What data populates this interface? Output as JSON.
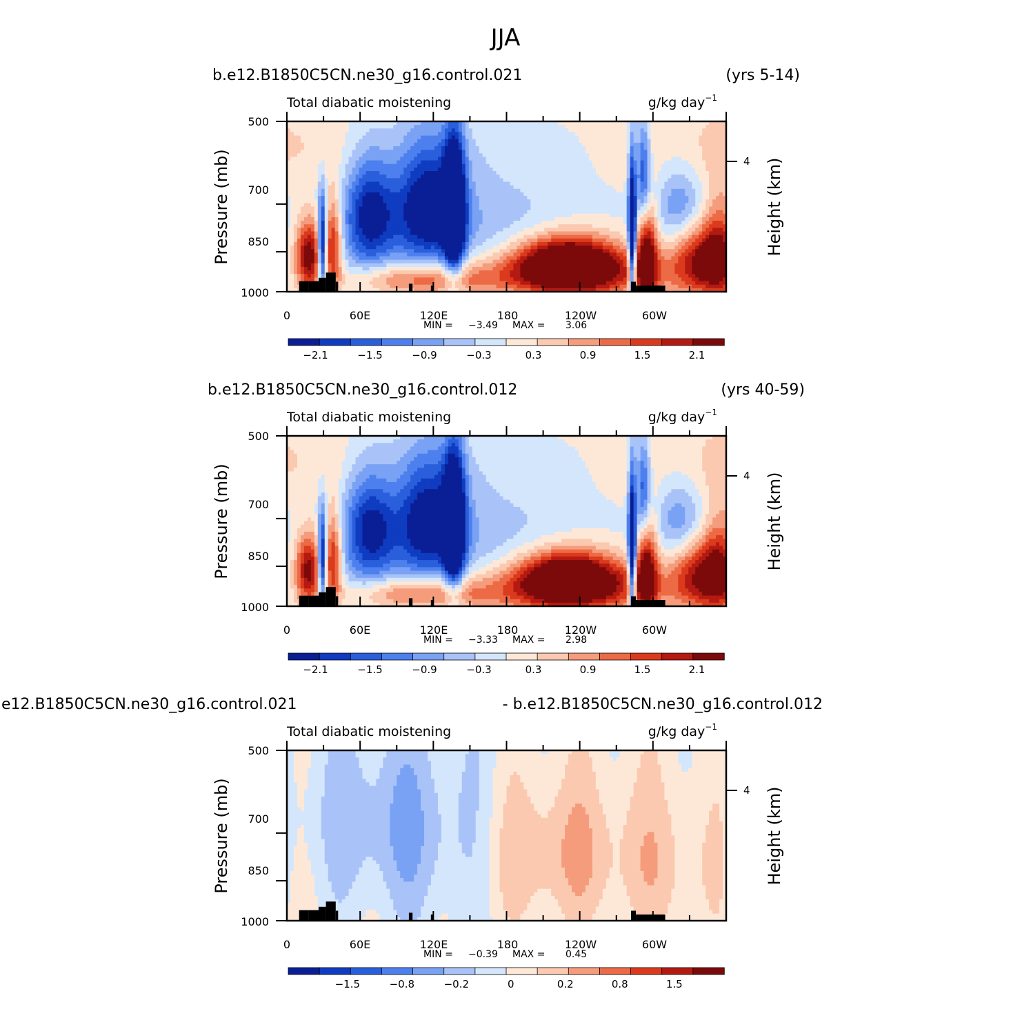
{
  "figure": {
    "title": "JJA"
  },
  "colors": {
    "palette": [
      "#0a1f96",
      "#0f3cc0",
      "#2a5fdc",
      "#4d80ee",
      "#7aa2f4",
      "#a9c3f8",
      "#d4e6fb",
      "#fde8d8",
      "#fbc9b0",
      "#f59c7c",
      "#ec6a45",
      "#dc3a1c",
      "#b41a12",
      "#7d0a0a"
    ],
    "mask": "#000000"
  },
  "chart_data": [
    {
      "type": "heatmap",
      "case_name": "b.e12.B1850C5CN.ne30_g16.control.021",
      "case_years": "(yrs 5-14)",
      "subtitle": "Total diabatic moistening",
      "units": "g/kg day",
      "units_exp": "−1",
      "ylabel": "Pressure (mb)",
      "ylabel_right": "Height (km)",
      "yticks": [
        "500",
        "700",
        "850",
        "1000"
      ],
      "yticks_right": [
        "4"
      ],
      "xticks": [
        "0",
        "60E",
        "120E",
        "180",
        "120W",
        "60W"
      ],
      "xlim_deg": [
        0,
        360
      ],
      "ylim_mb": [
        1000,
        500
      ],
      "min_label": "MIN =",
      "min_value": "−3.49",
      "max_label": "MAX =",
      "max_value": "3.06",
      "colorbar_labels": [
        "−2.1",
        "−1.5",
        "−0.9",
        "−0.3",
        "0.3",
        "0.9",
        "1.5",
        "2.1"
      ],
      "scale": 1.0
    },
    {
      "type": "heatmap",
      "case_name": "b.e12.B1850C5CN.ne30_g16.control.012",
      "case_years": "(yrs 40-59)",
      "subtitle": "Total diabatic moistening",
      "units": "g/kg day",
      "units_exp": "−1",
      "ylabel": "Pressure (mb)",
      "ylabel_right": "Height (km)",
      "yticks": [
        "500",
        "700",
        "850",
        "1000"
      ],
      "yticks_right": [
        "4"
      ],
      "xticks": [
        "0",
        "60E",
        "120E",
        "180",
        "120W",
        "60W"
      ],
      "xlim_deg": [
        0,
        360
      ],
      "ylim_mb": [
        1000,
        500
      ],
      "min_label": "MIN =",
      "min_value": "−3.33",
      "max_label": "MAX =",
      "max_value": "2.98",
      "colorbar_labels": [
        "−2.1",
        "−1.5",
        "−0.9",
        "−0.3",
        "0.3",
        "0.9",
        "1.5",
        "2.1"
      ],
      "scale": 0.96
    },
    {
      "type": "heatmap",
      "case_name": "e12.B1850C5CN.ne30_g16.control.021",
      "case_years": "- b.e12.B1850C5CN.ne30_g16.control.012",
      "subtitle": "Total diabatic moistening",
      "units": "g/kg day",
      "units_exp": "−1",
      "ylabel": "Pressure (mb)",
      "ylabel_right": "Height (km)",
      "yticks": [
        "500",
        "700",
        "850",
        "1000"
      ],
      "yticks_right": [
        "4"
      ],
      "xticks": [
        "0",
        "60E",
        "120E",
        "180",
        "120W",
        "60W"
      ],
      "xlim_deg": [
        0,
        360
      ],
      "ylim_mb": [
        1000,
        500
      ],
      "min_label": "MIN =",
      "min_value": "−0.39",
      "max_label": "MAX =",
      "max_value": "0.45",
      "colorbar_labels": [
        "−1.5",
        "−0.8",
        "−0.2",
        "0",
        "0.2",
        "0.8",
        "1.5"
      ],
      "scale": 0.15
    }
  ]
}
